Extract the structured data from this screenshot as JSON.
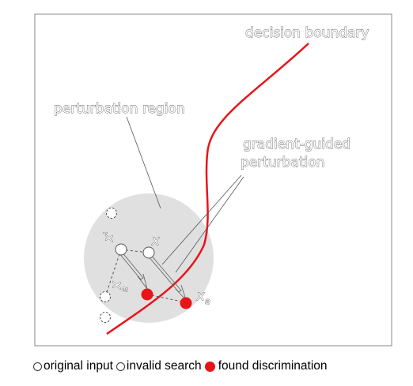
{
  "labels": {
    "decision_boundary": "decision boundary",
    "perturbation_region": "perturbation region",
    "gradient_guided_line1": "gradient-guided",
    "gradient_guided_line2": "perturbation",
    "x": "x",
    "x_prime": "x'",
    "x_a_left": "x",
    "x_a_left_sub": "a",
    "x_a_right": "x",
    "x_a_right_sub": "a"
  },
  "legend": {
    "original_input": "original input",
    "invalid_search": "invalid search",
    "found_discrimination": "found discrimination"
  },
  "colors": {
    "boundary": "#e8141a",
    "found_point": "#e8141a",
    "region_fill": "#e0e0e0",
    "frame": "#888888"
  }
}
